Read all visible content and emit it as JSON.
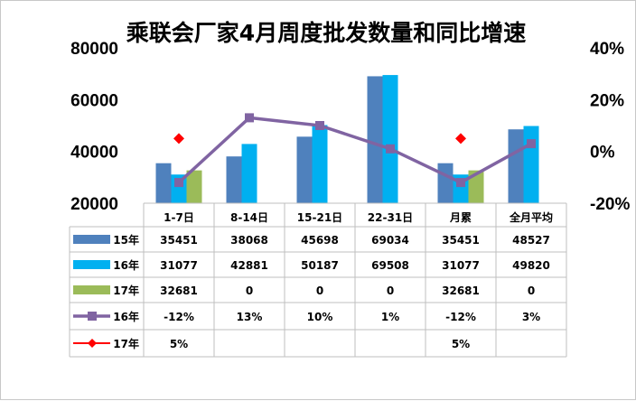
{
  "chart_data": {
    "type": "bar",
    "title": "乘联会厂家4月周度批发数量和同比增速",
    "categories": [
      "1-7日",
      "8-14日",
      "15-21日",
      "22-31日",
      "月累",
      "全月平均"
    ],
    "left_axis": {
      "min": 20000,
      "max": 80000,
      "ticks": [
        "80000",
        "60000",
        "40000",
        "20000"
      ]
    },
    "right_axis": {
      "min": -20,
      "max": 40,
      "ticks": [
        "40%",
        "20%",
        "0%",
        "-20%"
      ]
    },
    "bar_series": [
      {
        "name": "15年",
        "color": "#4f81bd",
        "values": [
          35451,
          38068,
          45698,
          69034,
          35451,
          48527
        ],
        "labels": [
          "35451",
          "38068",
          "45698",
          "69034",
          "35451",
          "48527"
        ]
      },
      {
        "name": "16年",
        "color": "#00b0f0",
        "values": [
          31077,
          42881,
          50187,
          69508,
          31077,
          49820
        ],
        "labels": [
          "31077",
          "42881",
          "50187",
          "69508",
          "31077",
          "49820"
        ]
      },
      {
        "name": "17年",
        "color": "#9bbb59",
        "values": [
          32681,
          0,
          0,
          0,
          32681,
          0
        ],
        "labels": [
          "32681",
          "0",
          "0",
          "0",
          "32681",
          "0"
        ]
      }
    ],
    "line_series": [
      {
        "name": "16年",
        "color": "#8064a2",
        "marker": "square",
        "values": [
          -12,
          13,
          10,
          1,
          -12,
          3
        ],
        "labels": [
          "-12%",
          "13%",
          "10%",
          "1%",
          "-12%",
          "3%"
        ]
      },
      {
        "name": "17年",
        "color": "#ff0000",
        "marker": "diamond",
        "values": [
          5,
          null,
          null,
          null,
          5,
          null
        ],
        "labels": [
          "5%",
          "",
          "",
          "",
          "5%",
          ""
        ]
      }
    ]
  }
}
